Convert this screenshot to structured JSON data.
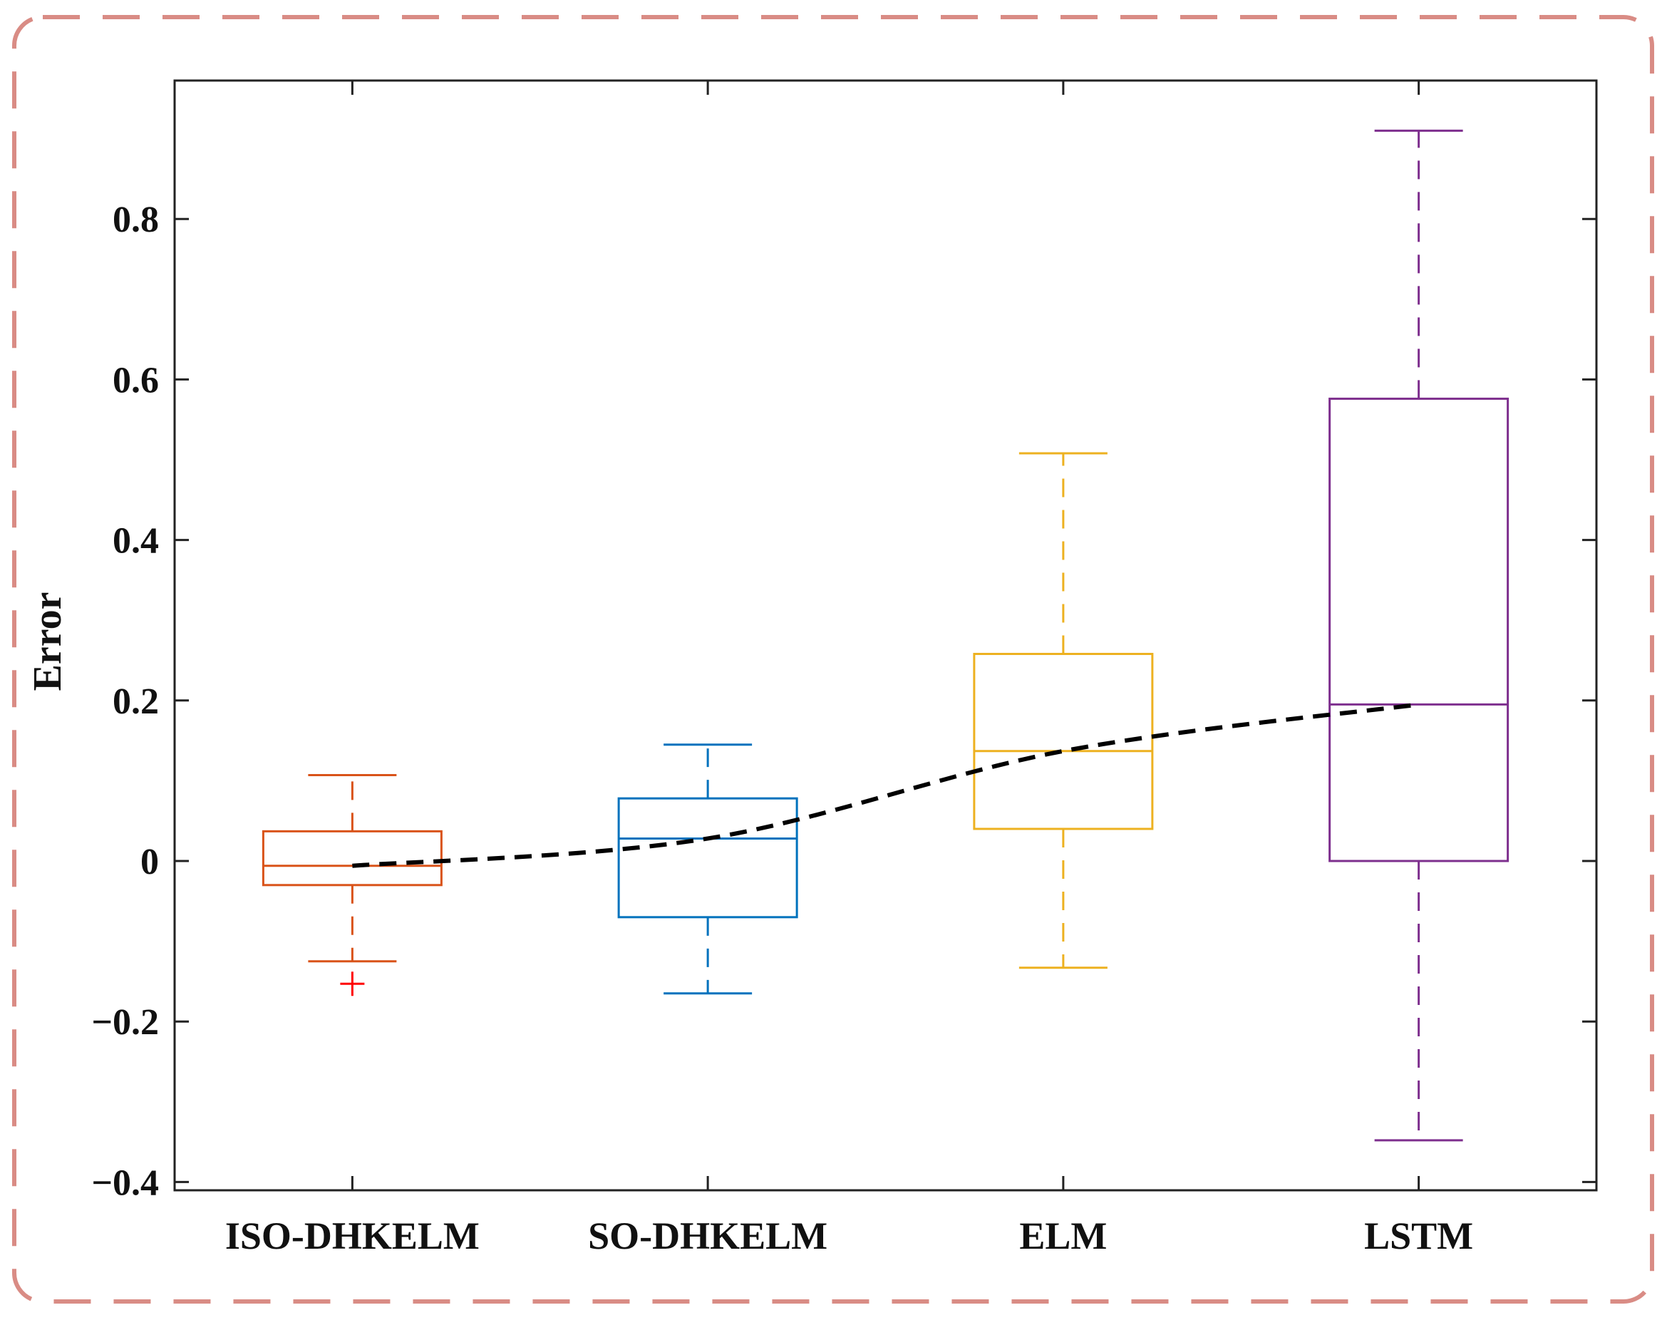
{
  "chart_data": {
    "type": "box",
    "title": "",
    "xlabel": "",
    "ylabel": "Error",
    "ylim": [
      -0.4,
      0.93
    ],
    "yticks": [
      -0.4,
      -0.2,
      0,
      0.2,
      0.4,
      0.6,
      0.8
    ],
    "ytick_labels": [
      "−0.4",
      "−0.2",
      "0",
      "0.2",
      "0.4",
      "0.6",
      "0.8"
    ],
    "grid": false,
    "categories": [
      "ISO-DHKELM",
      "SO-DHKELM",
      "ELM",
      "LSTM"
    ],
    "boxes": [
      {
        "name": "ISO-DHKELM",
        "whisker_low": -0.125,
        "q1": -0.03,
        "median": -0.006,
        "q3": 0.037,
        "whisker_high": 0.107,
        "outliers": [
          -0.153
        ],
        "color": "#D95319"
      },
      {
        "name": "SO-DHKELM",
        "whisker_low": -0.165,
        "q1": -0.07,
        "median": 0.028,
        "q3": 0.078,
        "whisker_high": 0.145,
        "outliers": [],
        "color": "#0072BD"
      },
      {
        "name": "ELM",
        "whisker_low": -0.133,
        "q1": 0.04,
        "median": 0.137,
        "q3": 0.258,
        "whisker_high": 0.508,
        "outliers": [],
        "color": "#EDB120"
      },
      {
        "name": "LSTM",
        "whisker_low": -0.348,
        "q1": 0.0,
        "median": 0.195,
        "q3": 0.576,
        "whisker_high": 0.91,
        "outliers": [],
        "color": "#7E2F8E"
      }
    ],
    "trend_line": {
      "style": "dashed",
      "color": "#000000",
      "values": [
        -0.006,
        0.028,
        0.137,
        0.195
      ]
    },
    "outlier_color": "#FF0000",
    "frame_color": "#D98C85"
  }
}
